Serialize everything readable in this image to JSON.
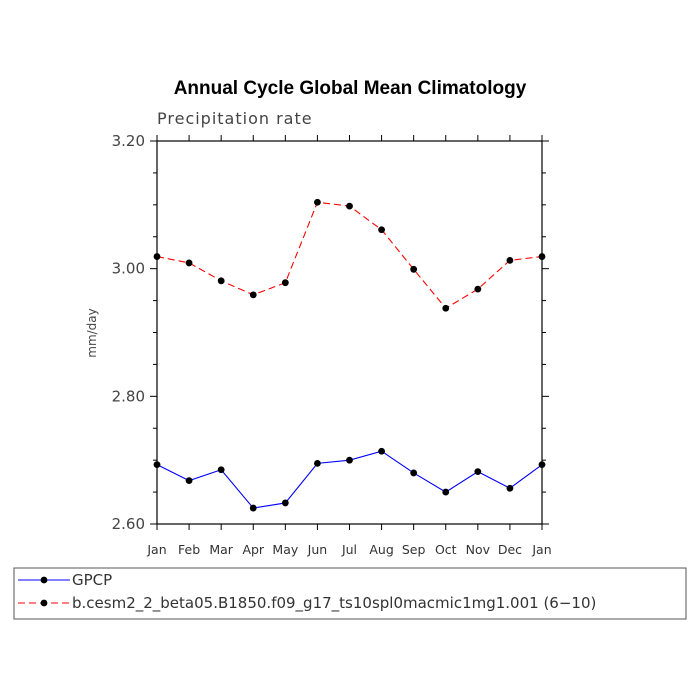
{
  "chart_data": {
    "type": "line",
    "title": "Annual Cycle Global Mean Climatology",
    "subtitle": "Precipitation rate",
    "xlabel": "",
    "ylabel": "mm/day",
    "categories": [
      "Jan",
      "Feb",
      "Mar",
      "Apr",
      "May",
      "Jun",
      "Jul",
      "Aug",
      "Sep",
      "Oct",
      "Nov",
      "Dec",
      "Jan"
    ],
    "ylim": [
      2.6,
      3.2
    ],
    "y_ticks": [
      "2.60",
      "2.80",
      "3.00",
      "3.20"
    ],
    "grid": false,
    "legend_position": "bottom",
    "series": [
      {
        "name": "GPCP",
        "color": "#0000ff",
        "line_style": "solid",
        "marker": "filled-circle",
        "values": [
          2.693,
          2.668,
          2.685,
          2.625,
          2.633,
          2.695,
          2.7,
          2.714,
          2.68,
          2.65,
          2.682,
          2.656,
          2.693
        ]
      },
      {
        "name": "b.cesm2_2_beta05.B1850.f09_g17_ts10spl0macmic1mg1.001 (6−10)",
        "color": "#ff0000",
        "line_style": "dashed",
        "marker": "filled-circle",
        "values": [
          3.019,
          3.009,
          2.981,
          2.959,
          2.978,
          3.104,
          3.098,
          3.061,
          2.999,
          2.938,
          2.968,
          3.013,
          3.019
        ]
      }
    ]
  }
}
